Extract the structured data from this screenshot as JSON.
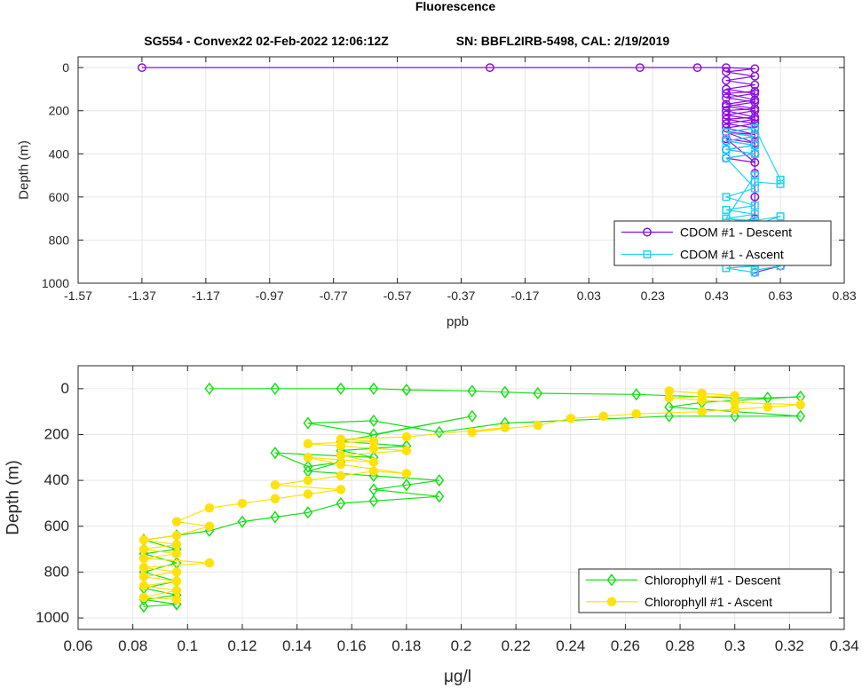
{
  "figure": {
    "title": "Fluorescence",
    "subtitle_left": "SG554 - Convex22 02-Feb-2022 12:06:12Z",
    "subtitle_right": "SN: BBFL2IRB-5498, CAL: 2/19/2019"
  },
  "colors": {
    "cdom_descent": "#8a0fe0",
    "cdom_ascent": "#22d3f0",
    "chl_descent": "#16e016",
    "chl_ascent": "#ffe20a",
    "grid": "#e6e6e6",
    "axis": "#262626"
  },
  "chart_data": [
    {
      "type": "line",
      "xlabel": "ppb",
      "ylabel": "Depth (m)",
      "xlim": [
        -1.57,
        0.83
      ],
      "ylim": [
        1000,
        -50
      ],
      "y_reversed": true,
      "xticks": [
        -1.57,
        -1.37,
        -1.17,
        -0.97,
        -0.77,
        -0.57,
        -0.37,
        -0.17,
        0.03,
        0.23,
        0.43,
        0.63,
        0.83
      ],
      "xtick_labels": [
        "-1.57",
        "-1.37",
        "-1.17",
        "-0.97",
        "-0.77",
        "-0.57",
        "-0.37",
        "-0.17",
        "0.03",
        "0.23",
        "0.43",
        "0.63",
        "0.83"
      ],
      "yticks": [
        0,
        200,
        400,
        600,
        800,
        1000
      ],
      "ytick_labels": [
        "0",
        "200",
        "400",
        "600",
        "800",
        "1000"
      ],
      "grid": true,
      "legend_position": "bottom-right",
      "series": [
        {
          "name": "CDOM #1 - Descent",
          "marker": "circle",
          "x": [
            -1.37,
            -0.28,
            0.19,
            0.37,
            0.46,
            0.55,
            0.46,
            0.55,
            0.46,
            0.55,
            0.46,
            0.55,
            0.46,
            0.55,
            0.46,
            0.55,
            0.46,
            0.55,
            0.46,
            0.55,
            0.46,
            0.55,
            0.46,
            0.55,
            0.46,
            0.55,
            0.46,
            0.55,
            0.46,
            0.55,
            0.46,
            0.55,
            0.46,
            0.55,
            0.46,
            0.55,
            0.46,
            0.55,
            0.46,
            0.55,
            0.46,
            0.55,
            0.55,
            0.55,
            0.55,
            0.46,
            0.55,
            0.55,
            0.55,
            0.63,
            0.55,
            0.63,
            0.55
          ],
          "y": [
            0,
            0,
            0,
            0,
            0,
            5,
            20,
            40,
            60,
            80,
            100,
            120,
            140,
            160,
            180,
            200,
            220,
            240,
            260,
            280,
            300,
            320,
            340,
            360,
            380,
            400,
            420,
            440,
            330,
            350,
            300,
            310,
            280,
            260,
            240,
            230,
            200,
            190,
            170,
            150,
            120,
            110,
            490,
            600,
            700,
            730,
            760,
            800,
            850,
            870,
            900,
            920,
            950
          ]
        },
        {
          "name": "CDOM #1 - Ascent",
          "marker": "square",
          "x": [
            0.55,
            0.46,
            0.55,
            0.46,
            0.55,
            0.46,
            0.55,
            0.46,
            0.55,
            0.46,
            0.55,
            0.46,
            0.55,
            0.46,
            0.55,
            0.46,
            0.55,
            0.46,
            0.55,
            0.46,
            0.55,
            0.46,
            0.55,
            0.46,
            0.55,
            0.46,
            0.55,
            0.63,
            0.63,
            0.55,
            0.55,
            0.46,
            0.55,
            0.63,
            0.55,
            0.46,
            0.55,
            0.63,
            0.55,
            0.63,
            0.55,
            0.63,
            0.55,
            0.63,
            0.55,
            0.63,
            0.55
          ],
          "y": [
            950,
            930,
            920,
            900,
            880,
            860,
            840,
            820,
            800,
            780,
            760,
            740,
            720,
            700,
            680,
            660,
            640,
            600,
            560,
            420,
            400,
            380,
            360,
            340,
            320,
            300,
            280,
            520,
            540,
            530,
            500,
            700,
            710,
            690,
            730,
            720,
            740,
            760,
            780,
            800,
            820,
            840,
            860,
            880,
            900,
            920,
            940
          ]
        }
      ]
    },
    {
      "type": "line",
      "xlabel": "μg/l",
      "ylabel": "Depth (m)",
      "xlim": [
        0.06,
        0.34
      ],
      "ylim": [
        1050,
        -100
      ],
      "y_reversed": true,
      "xticks": [
        0.06,
        0.08,
        0.1,
        0.12,
        0.14,
        0.16,
        0.18,
        0.2,
        0.22,
        0.24,
        0.26,
        0.28,
        0.3,
        0.32,
        0.34
      ],
      "xtick_labels": [
        "0.06",
        "0.08",
        "0.1",
        "0.12",
        "0.14",
        "0.16",
        "0.18",
        "0.2",
        "0.22",
        "0.24",
        "0.26",
        "0.28",
        "0.3",
        "0.32",
        "0.34"
      ],
      "yticks": [
        0,
        200,
        400,
        600,
        800,
        1000
      ],
      "ytick_labels": [
        "0",
        "200",
        "400",
        "600",
        "800",
        "1000"
      ],
      "grid": true,
      "legend_position": "bottom-right",
      "series": [
        {
          "name": "Chlorophyll #1 - Descent",
          "marker": "diamond",
          "x": [
            0.108,
            0.132,
            0.156,
            0.168,
            0.18,
            0.204,
            0.216,
            0.228,
            0.264,
            0.3,
            0.312,
            0.324,
            0.288,
            0.276,
            0.324,
            0.3,
            0.276,
            0.216,
            0.192,
            0.168,
            0.144,
            0.168,
            0.204,
            0.156,
            0.18,
            0.156,
            0.168,
            0.132,
            0.144,
            0.156,
            0.144,
            0.168,
            0.192,
            0.18,
            0.168,
            0.192,
            0.168,
            0.156,
            0.144,
            0.132,
            0.12,
            0.108,
            0.096,
            0.084,
            0.096,
            0.084,
            0.096,
            0.084,
            0.096,
            0.084,
            0.096,
            0.084,
            0.096,
            0.084,
            0.096
          ],
          "y": [
            0,
            0,
            0,
            0,
            5,
            10,
            15,
            20,
            25,
            40,
            40,
            35,
            60,
            80,
            120,
            120,
            120,
            150,
            190,
            140,
            150,
            200,
            120,
            230,
            250,
            270,
            300,
            280,
            340,
            320,
            360,
            380,
            400,
            420,
            440,
            470,
            490,
            500,
            540,
            560,
            580,
            620,
            640,
            660,
            700,
            720,
            760,
            800,
            840,
            870,
            900,
            920,
            940,
            950,
            940
          ]
        },
        {
          "name": "Chlorophyll #1 - Ascent",
          "marker": "circle",
          "x": [
            0.096,
            0.084,
            0.096,
            0.084,
            0.096,
            0.084,
            0.096,
            0.084,
            0.108,
            0.084,
            0.096,
            0.084,
            0.096,
            0.084,
            0.096,
            0.108,
            0.096,
            0.108,
            0.12,
            0.132,
            0.144,
            0.156,
            0.132,
            0.144,
            0.156,
            0.168,
            0.18,
            0.156,
            0.144,
            0.168,
            0.156,
            0.18,
            0.168,
            0.156,
            0.144,
            0.168,
            0.156,
            0.18,
            0.216,
            0.204,
            0.228,
            0.24,
            0.252,
            0.264,
            0.288,
            0.3,
            0.312,
            0.324,
            0.3,
            0.288,
            0.276,
            0.3,
            0.288,
            0.276
          ],
          "y": [
            920,
            910,
            880,
            860,
            840,
            820,
            800,
            780,
            760,
            740,
            720,
            700,
            680,
            660,
            640,
            600,
            580,
            520,
            500,
            480,
            460,
            440,
            420,
            400,
            380,
            360,
            370,
            330,
            300,
            320,
            290,
            270,
            260,
            250,
            240,
            230,
            220,
            210,
            170,
            190,
            160,
            130,
            120,
            110,
            100,
            90,
            80,
            70,
            60,
            50,
            40,
            30,
            20,
            10
          ]
        }
      ]
    }
  ]
}
